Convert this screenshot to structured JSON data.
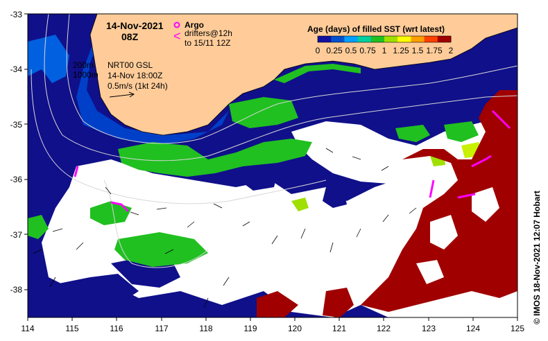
{
  "title": {
    "date": "14-Nov-2021",
    "hour": "08Z"
  },
  "argo_legend": {
    "label": "Argo",
    "symbol_color": "#ff00ff"
  },
  "drifters_legend": {
    "line1": "drifters@12h",
    "line2": "to 15/11 12Z",
    "symbol": "<",
    "symbol_color": "#ff00ff"
  },
  "contours_legend": {
    "contour_200": "200m",
    "contour_1000": "1000m"
  },
  "product_legend": {
    "line1": "NRT00 GSL",
    "line2": "14-Nov 18:00Z",
    "line3": "0.5m/s (1kt 24h)"
  },
  "colorbar": {
    "title": "Age (days) of filled SST (wrt latest)",
    "tick_labels": [
      "0",
      "0.25",
      "0.5",
      "0.75",
      "1",
      "1.25",
      "1.5",
      "1.75",
      "2"
    ],
    "colors": [
      "#1010a0",
      "#0050d0",
      "#00a0ff",
      "#00d0a0",
      "#20c020",
      "#a0e000",
      "#ffff00",
      "#ffa000",
      "#ff4000",
      "#a00000"
    ]
  },
  "credit": "© IMOS 18-Nov-2021 12:07 Hobart",
  "map": {
    "land_color": "#ffcc99",
    "lon_range": [
      114,
      125
    ],
    "lat_range": [
      -38.5,
      -33
    ],
    "lon_ticks": [
      "114",
      "115",
      "116",
      "117",
      "118",
      "119",
      "120",
      "121",
      "122",
      "123",
      "124",
      "125"
    ],
    "lat_ticks": [
      "-33",
      "-34",
      "-35",
      "-36",
      "-37",
      "-38"
    ]
  },
  "chart_data": {
    "type": "heatmap",
    "xlabel": "",
    "ylabel": "",
    "x_ticks": [
      114,
      115,
      116,
      117,
      118,
      119,
      120,
      121,
      122,
      123,
      124,
      125
    ],
    "y_ticks": [
      -33,
      -34,
      -35,
      -36,
      -37,
      -38
    ],
    "xlim": [
      114,
      125
    ],
    "ylim": [
      -38.5,
      -33
    ],
    "color_scale": {
      "variable": "age_days",
      "range": [
        0,
        2
      ]
    }
  }
}
